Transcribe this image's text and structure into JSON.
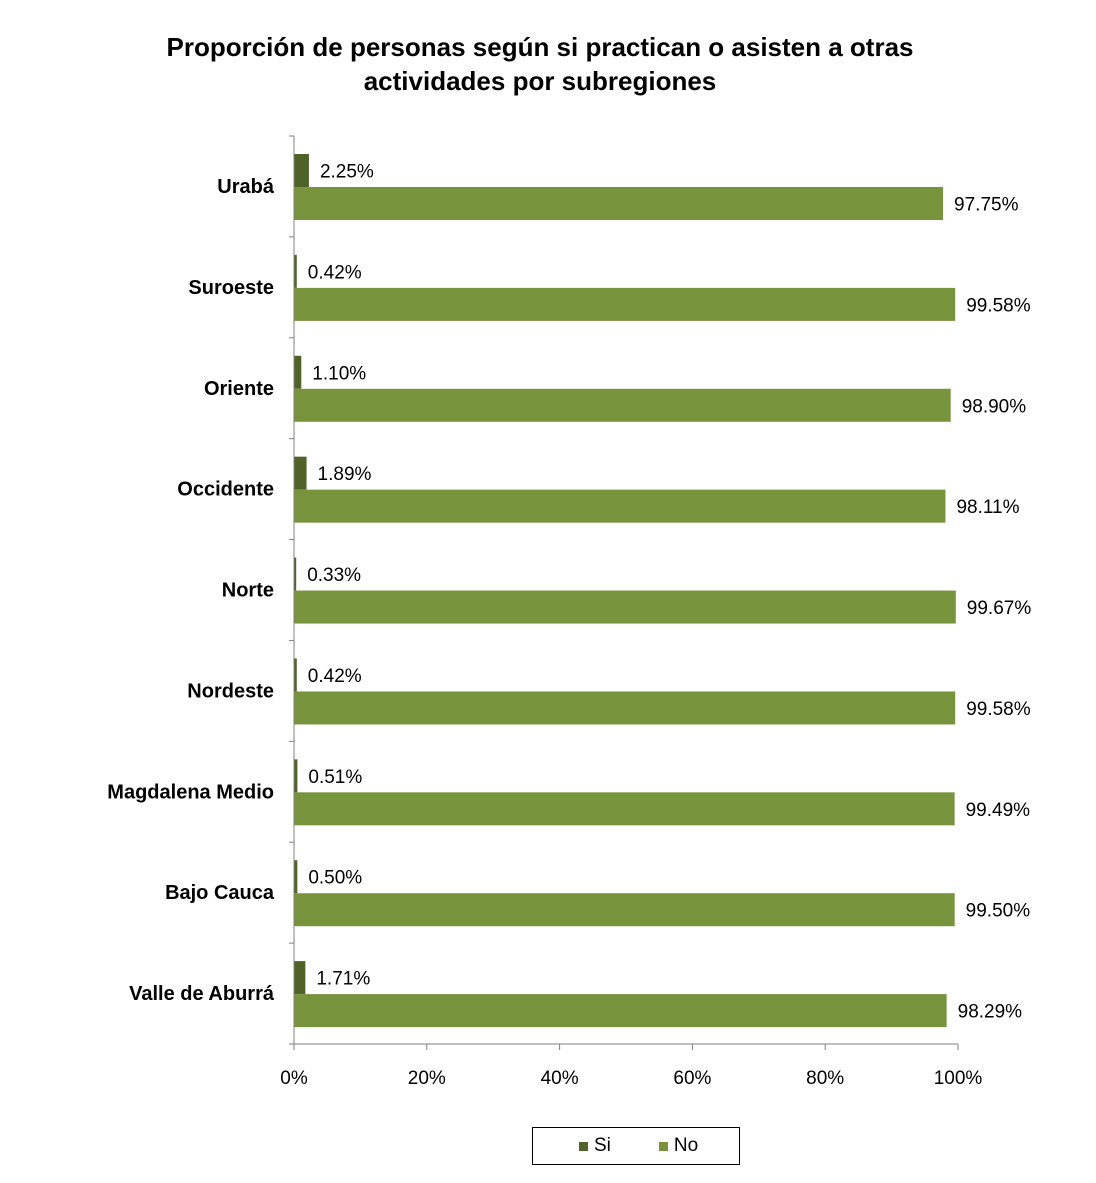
{
  "chart_data": {
    "type": "bar",
    "orientation": "horizontal",
    "title_lines": [
      "Proporción de personas según si practican o asisten a otras",
      "actividades por subregiones"
    ],
    "categories": [
      "Urabá",
      "Suroeste",
      "Oriente",
      "Occidente",
      "Norte",
      "Nordeste",
      "Magdalena Medio",
      "Bajo Cauca",
      "Valle de Aburrá"
    ],
    "series": [
      {
        "name": "Si",
        "color": "#4f6228",
        "values": [
          2.25,
          0.42,
          1.1,
          1.89,
          0.33,
          0.42,
          0.51,
          0.5,
          1.71
        ],
        "labels": [
          "2.25%",
          "0.42%",
          "1.10%",
          "1.89%",
          "0.33%",
          "0.42%",
          "0.51%",
          "0.50%",
          "1.71%"
        ]
      },
      {
        "name": "No",
        "color": "#77933c",
        "values": [
          97.75,
          99.58,
          98.9,
          98.11,
          99.67,
          99.58,
          99.49,
          99.5,
          98.29
        ],
        "labels": [
          "97.75%",
          "99.58%",
          "98.90%",
          "98.11%",
          "99.67%",
          "99.58%",
          "99.49%",
          "99.50%",
          "98.29%"
        ]
      }
    ],
    "xlim": [
      0,
      100
    ],
    "xticks": [
      0,
      20,
      40,
      60,
      80,
      100
    ],
    "xtick_labels": [
      "0%",
      "20%",
      "40%",
      "60%",
      "80%",
      "100%"
    ],
    "grid": false,
    "legend_position": "bottom"
  }
}
